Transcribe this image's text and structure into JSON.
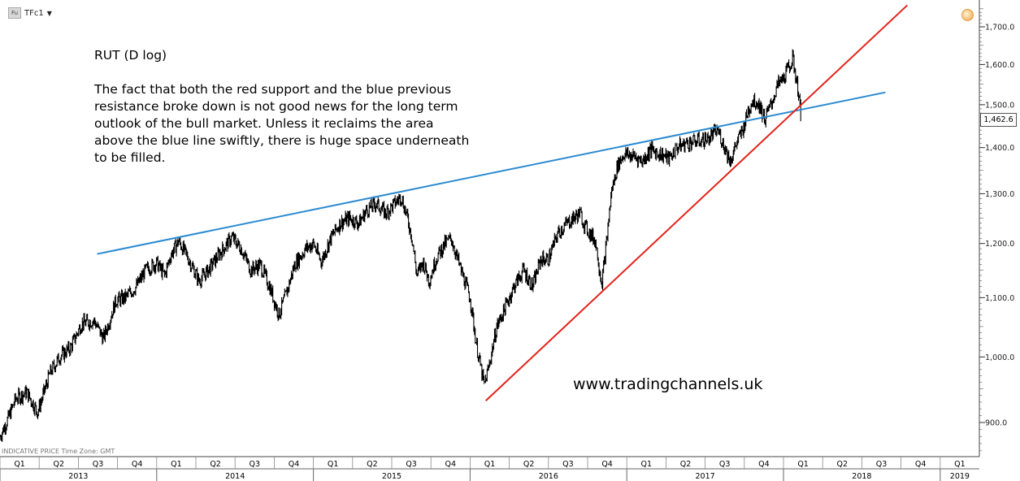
{
  "header": {
    "symbol": "TFc1",
    "symbol_icon": "Fu",
    "dropdown_icon": "triangle-down-icon"
  },
  "annotation": {
    "title": "RUT (D log)",
    "body": "The fact that both the red support and the blue previous\nresistance broke down is not good news for the long term\noutlook of the bull market. Unless it reclaims the area\nabove the blue line swiftly, there is huge space underneath\nto be filled."
  },
  "watermark": "www.tradingchannels.uk",
  "footer_note": "INDICATIVE PRICE   Time Zone: GMT",
  "current_price": "1,462.6",
  "colors": {
    "price": "#000000",
    "support": "#e3231b",
    "resistance": "#2b8ad1",
    "axis": "#333333"
  },
  "chart_data": {
    "type": "line",
    "scale": "log",
    "title": "RUT (D log)",
    "xlabel": "",
    "ylabel": "",
    "ylim": [
      840,
      1760
    ],
    "xlim": [
      2013.0,
      2019.25
    ],
    "y_ticks": [
      900,
      1000,
      1100,
      1200,
      1300,
      1400,
      1500,
      1600,
      1700
    ],
    "y_tick_labels": [
      "900.0",
      "1,000.0",
      "1,100.0",
      "1,200.0",
      "1,300.0",
      "1,400.0",
      "1,500.0",
      "1,600.0",
      "1,700.0"
    ],
    "quarter_labels": [
      "Q1",
      "Q2",
      "Q3",
      "Q4",
      "Q1",
      "Q2",
      "Q3",
      "Q4",
      "Q1",
      "Q2",
      "Q3",
      "Q4",
      "Q1",
      "Q2",
      "Q3",
      "Q4",
      "Q1",
      "Q2",
      "Q3",
      "Q4",
      "Q1",
      "Q2",
      "Q3",
      "Q4",
      "Q1"
    ],
    "year_labels": [
      "2013",
      "2014",
      "2015",
      "2016",
      "2017",
      "2018",
      "2019"
    ],
    "series": [
      {
        "values": [
          [
            2013.0,
            880
          ],
          [
            2013.05,
            905
          ],
          [
            2013.1,
            935
          ],
          [
            2013.17,
            945
          ],
          [
            2013.24,
            915
          ],
          [
            2013.32,
            975
          ],
          [
            2013.38,
            1000
          ],
          [
            2013.45,
            1015
          ],
          [
            2013.52,
            1055
          ],
          [
            2013.6,
            1060
          ],
          [
            2013.66,
            1030
          ],
          [
            2013.74,
            1095
          ],
          [
            2013.8,
            1100
          ],
          [
            2013.87,
            1120
          ],
          [
            2013.93,
            1150
          ],
          [
            2014.0,
            1163
          ],
          [
            2014.05,
            1140
          ],
          [
            2014.09,
            1178
          ],
          [
            2014.14,
            1205
          ],
          [
            2014.2,
            1172
          ],
          [
            2014.27,
            1130
          ],
          [
            2014.33,
            1150
          ],
          [
            2014.4,
            1180
          ],
          [
            2014.48,
            1212
          ],
          [
            2014.54,
            1190
          ],
          [
            2014.6,
            1150
          ],
          [
            2014.66,
            1160
          ],
          [
            2014.72,
            1120
          ],
          [
            2014.78,
            1070
          ],
          [
            2014.83,
            1110
          ],
          [
            2014.88,
            1160
          ],
          [
            2014.95,
            1190
          ],
          [
            2015.0,
            1200
          ],
          [
            2015.05,
            1165
          ],
          [
            2015.11,
            1210
          ],
          [
            2015.17,
            1240
          ],
          [
            2015.23,
            1250
          ],
          [
            2015.29,
            1240
          ],
          [
            2015.34,
            1266
          ],
          [
            2015.4,
            1280
          ],
          [
            2015.46,
            1260
          ],
          [
            2015.52,
            1280
          ],
          [
            2015.56,
            1295
          ],
          [
            2015.6,
            1250
          ],
          [
            2015.63,
            1210
          ],
          [
            2015.66,
            1140
          ],
          [
            2015.7,
            1165
          ],
          [
            2015.74,
            1130
          ],
          [
            2015.78,
            1170
          ],
          [
            2015.84,
            1200
          ],
          [
            2015.88,
            1210
          ],
          [
            2015.93,
            1160
          ],
          [
            2016.0,
            1100
          ],
          [
            2016.04,
            1020
          ],
          [
            2016.09,
            955
          ],
          [
            2016.12,
            985
          ],
          [
            2016.17,
            1050
          ],
          [
            2016.22,
            1080
          ],
          [
            2016.28,
            1120
          ],
          [
            2016.34,
            1150
          ],
          [
            2016.4,
            1120
          ],
          [
            2016.45,
            1170
          ],
          [
            2016.5,
            1170
          ],
          [
            2016.56,
            1220
          ],
          [
            2016.62,
            1240
          ],
          [
            2016.66,
            1250
          ],
          [
            2016.7,
            1260
          ],
          [
            2016.74,
            1230
          ],
          [
            2016.8,
            1205
          ],
          [
            2016.84,
            1125
          ],
          [
            2016.87,
            1200
          ],
          [
            2016.9,
            1300
          ],
          [
            2016.94,
            1360
          ],
          [
            2016.98,
            1385
          ],
          [
            2017.05,
            1380
          ],
          [
            2017.1,
            1370
          ],
          [
            2017.15,
            1395
          ],
          [
            2017.22,
            1385
          ],
          [
            2017.27,
            1375
          ],
          [
            2017.32,
            1400
          ],
          [
            2017.38,
            1410
          ],
          [
            2017.45,
            1415
          ],
          [
            2017.52,
            1420
          ],
          [
            2017.58,
            1440
          ],
          [
            2017.62,
            1405
          ],
          [
            2017.66,
            1370
          ],
          [
            2017.7,
            1410
          ],
          [
            2017.74,
            1440
          ],
          [
            2017.77,
            1480
          ],
          [
            2017.8,
            1510
          ],
          [
            2017.84,
            1505
          ],
          [
            2017.88,
            1465
          ],
          [
            2017.92,
            1500
          ],
          [
            2017.96,
            1545
          ],
          [
            2018.0,
            1565
          ],
          [
            2018.03,
            1590
          ],
          [
            2018.06,
            1615
          ],
          [
            2018.08,
            1565
          ],
          [
            2018.1,
            1520
          ],
          [
            2018.11,
            1462.6
          ]
        ]
      }
    ],
    "trendlines": [
      {
        "name": "blue previous resistance",
        "color": "#2b8ad1",
        "points": [
          [
            2013.62,
            1180
          ],
          [
            2018.65,
            1530
          ]
        ]
      },
      {
        "name": "red support",
        "color": "#e3231b",
        "points": [
          [
            2016.1,
            932
          ],
          [
            2018.79,
            1760
          ]
        ]
      }
    ]
  }
}
